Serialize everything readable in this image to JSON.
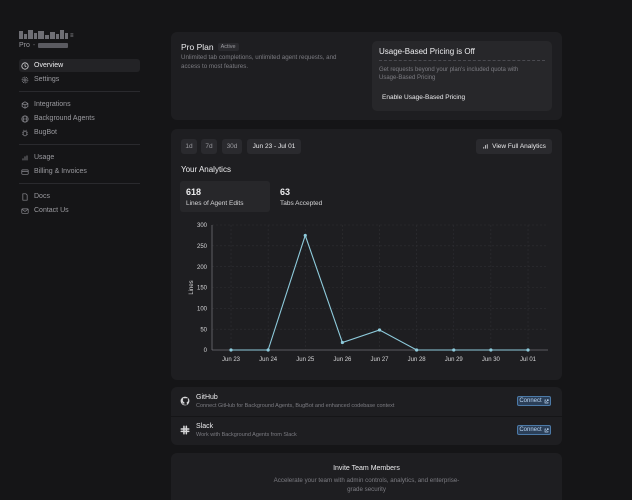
{
  "sidebar": {
    "plan_label": "Pro",
    "items": [
      {
        "label": "Overview",
        "icon": "clock-icon"
      },
      {
        "label": "Settings",
        "icon": "gear-icon"
      },
      {
        "label": "Integrations",
        "icon": "cube-icon"
      },
      {
        "label": "Background Agents",
        "icon": "globe-icon"
      },
      {
        "label": "BugBot",
        "icon": "bug-icon"
      },
      {
        "label": "Usage",
        "icon": "bar-chart-icon"
      },
      {
        "label": "Billing & Invoices",
        "icon": "credit-card-icon"
      },
      {
        "label": "Docs",
        "icon": "document-icon"
      },
      {
        "label": "Contact Us",
        "icon": "mail-icon"
      }
    ]
  },
  "plan": {
    "title": "Pro Plan",
    "badge": "Active",
    "description": "Unlimited tab completions, unlimited agent requests, and access to most features."
  },
  "pricing": {
    "title": "Usage-Based Pricing is Off",
    "description": "Get requests beyond your plan's included quota with Usage-Based Pricing",
    "button": "Enable Usage-Based Pricing"
  },
  "analytics": {
    "ranges": [
      "1d",
      "7d",
      "30d"
    ],
    "date_range": "Jun 23 - Jul 01",
    "full_button": "View Full Analytics",
    "title": "Your Analytics",
    "stats": [
      {
        "value": "618",
        "label": "Lines of Agent Edits"
      },
      {
        "value": "63",
        "label": "Tabs Accepted"
      }
    ]
  },
  "chart_data": {
    "type": "line",
    "categories": [
      "Jun 23",
      "Jun 24",
      "Jun 25",
      "Jun 26",
      "Jun 27",
      "Jun 28",
      "Jun 29",
      "Jun 30",
      "Jul 01"
    ],
    "values": [
      0,
      0,
      275,
      18,
      48,
      0,
      0,
      0,
      0
    ],
    "ylabel": "Lines",
    "yticks": [
      0,
      50,
      100,
      150,
      200,
      250,
      300
    ],
    "ylim": [
      0,
      300
    ],
    "grid": true,
    "line_color": "#8ecbdc"
  },
  "integrations": [
    {
      "name": "GitHub",
      "description": "Connect GitHub for Background Agents, BugBot and enhanced codebase context",
      "button": "Connect",
      "icon": "github-icon"
    },
    {
      "name": "Slack",
      "description": "Work with Background Agents from Slack",
      "button": "Connect",
      "icon": "slack-icon"
    }
  ],
  "invite": {
    "title": "Invite Team Members",
    "description_line1": "Accelerate your team with admin controls, analytics, and enterprise-",
    "description_line2": "grade security"
  }
}
